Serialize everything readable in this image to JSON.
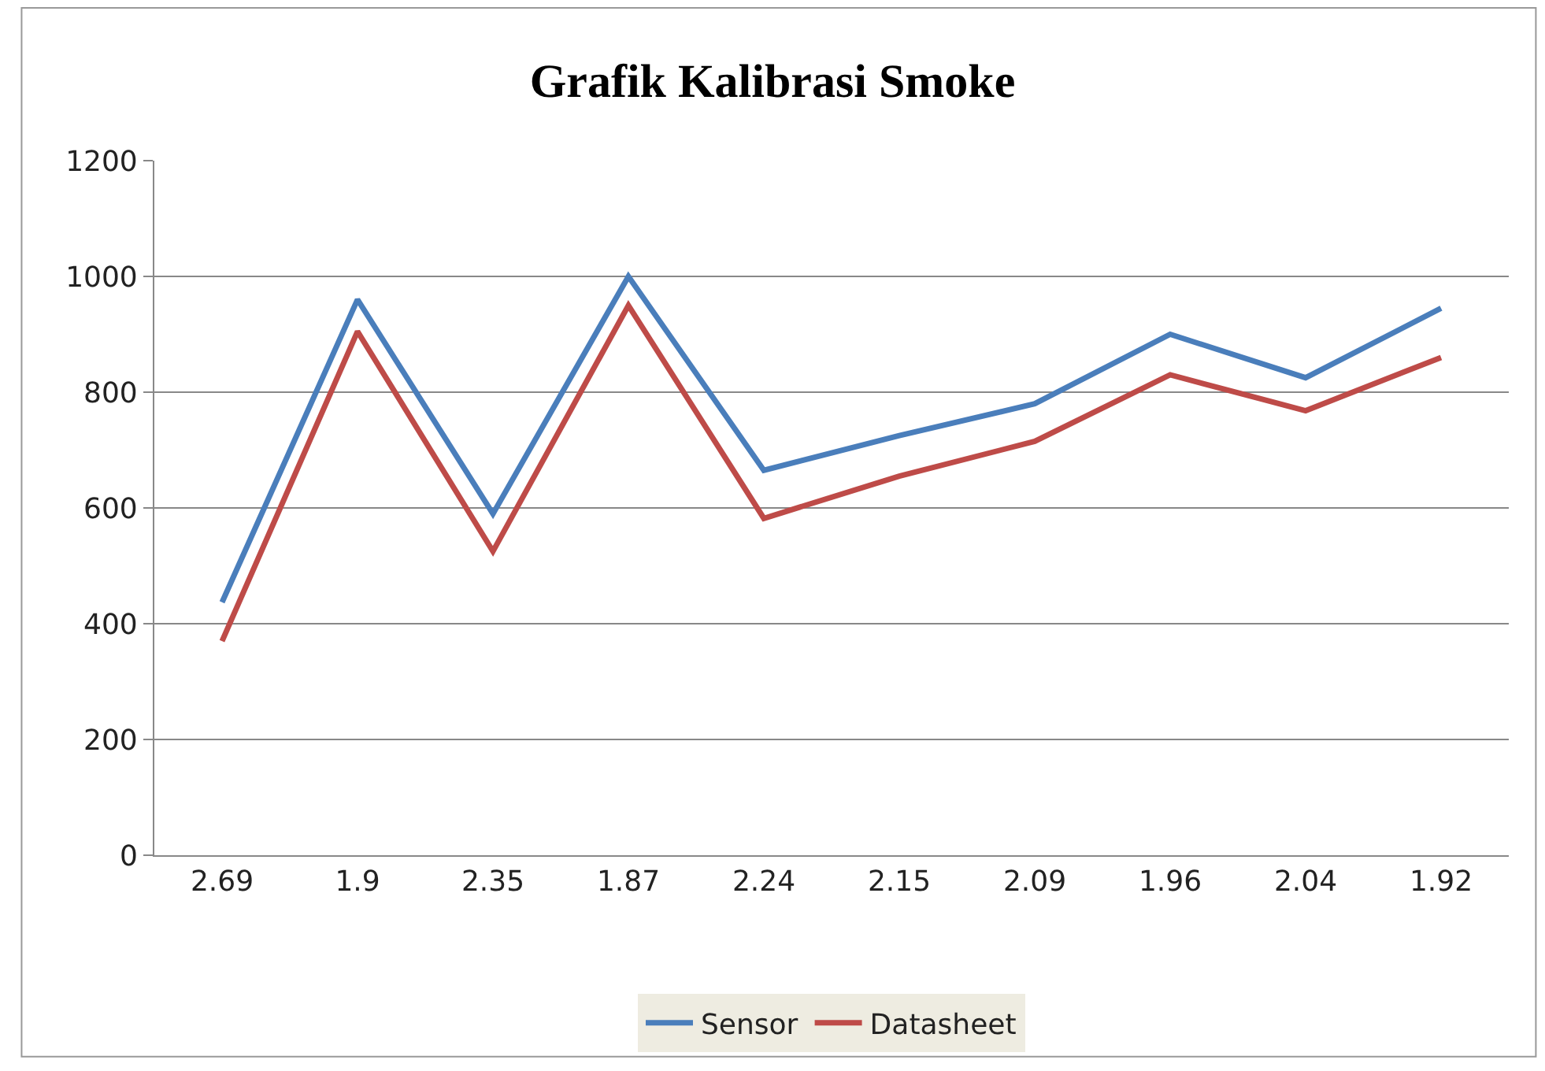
{
  "chart_data": {
    "type": "line",
    "title": "Grafik Kalibrasi Smoke",
    "categories": [
      "2.69",
      "1.9",
      "2.35",
      "1.87",
      "2.24",
      "2.15",
      "2.09",
      "1.96",
      "2.04",
      "1.92"
    ],
    "series": [
      {
        "name": "Sensor",
        "color": "#4a7ebb",
        "values": [
          437,
          960,
          590,
          1000,
          665,
          725,
          780,
          900,
          825,
          945
        ]
      },
      {
        "name": "Datasheet",
        "color": "#be4b48",
        "values": [
          370,
          905,
          525,
          950,
          582,
          655,
          715,
          830,
          768,
          860
        ]
      }
    ],
    "ylim": [
      0,
      1200
    ],
    "yticks": [
      0,
      200,
      400,
      600,
      800,
      1000,
      1200
    ],
    "grid": "y",
    "legend": "bottom",
    "marker": "none",
    "line_style": "solid"
  }
}
